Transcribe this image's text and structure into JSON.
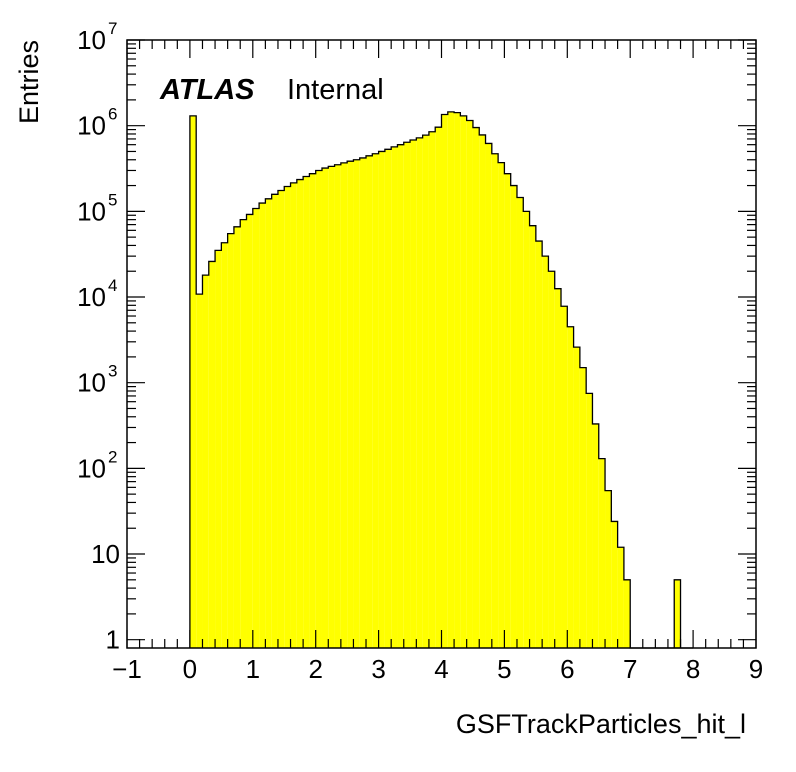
{
  "chart_data": {
    "type": "bar",
    "title": "",
    "xlabel": "GSFTrackParticles_hit_l",
    "ylabel": "Entries",
    "xlim": [
      -1,
      9
    ],
    "ylim": [
      0.8,
      10000000
    ],
    "yscale": "log",
    "fill_color": "#ffff00",
    "edge_color": "#000000",
    "x_ticks": [
      "−1",
      "0",
      "1",
      "2",
      "3",
      "4",
      "5",
      "6",
      "7",
      "8",
      "9"
    ],
    "y_ticks": [
      {
        "base": "1",
        "exp": ""
      },
      {
        "base": "10",
        "exp": ""
      },
      {
        "base": "10",
        "exp": "2"
      },
      {
        "base": "10",
        "exp": "3"
      },
      {
        "base": "10",
        "exp": "4"
      },
      {
        "base": "10",
        "exp": "5"
      },
      {
        "base": "10",
        "exp": "6"
      },
      {
        "base": "10",
        "exp": "7"
      }
    ],
    "bin_width": 0.1,
    "bin_edges_start": 0.0,
    "values": [
      1300000,
      10800,
      18000,
      26000,
      35000,
      43000,
      55000,
      66000,
      80000,
      92000,
      108000,
      125000,
      140000,
      158000,
      175000,
      195000,
      215000,
      235000,
      255000,
      275000,
      300000,
      320000,
      335000,
      350000,
      368000,
      385000,
      400000,
      420000,
      445000,
      470000,
      500000,
      530000,
      565000,
      600000,
      640000,
      680000,
      720000,
      775000,
      850000,
      960000,
      1350000,
      1450000,
      1420000,
      1300000,
      1150000,
      950000,
      780000,
      620000,
      470000,
      370000,
      275000,
      200000,
      145000,
      100000,
      68000,
      45000,
      30000,
      20000,
      12500,
      7800,
      4500,
      2600,
      1500,
      750,
      330,
      130,
      55,
      24,
      12,
      5,
      0,
      0,
      0,
      0,
      0,
      0,
      0,
      0,
      0,
      0
    ],
    "extra_bins": [
      {
        "x0": 7.7,
        "x1": 7.8,
        "value": 5
      }
    ],
    "annotations": [
      {
        "text": "ATLAS",
        "style": "bold-italic"
      },
      {
        "text": "Internal",
        "style": "normal"
      }
    ],
    "grid": false,
    "legend": "none"
  }
}
